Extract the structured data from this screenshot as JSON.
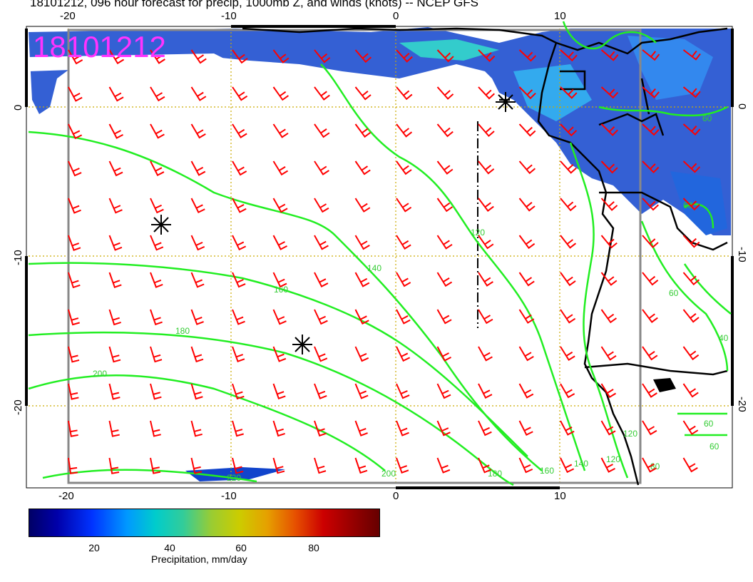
{
  "title": "18101212, 096 hour forecast for precip, 1000mb Z, and winds (knots) -- NCEP GFS",
  "run_stamp": "18101212",
  "axes": {
    "lon_top_labels": [
      "-20",
      "-10",
      "0",
      "10"
    ],
    "lon_bottom_labels": [
      "-20",
      "-10",
      "0",
      "10"
    ],
    "lat_left_labels": [
      "0",
      "-10",
      "-20"
    ],
    "lat_right_labels": [
      "0",
      "-10",
      "-20"
    ]
  },
  "contour_labels": [
    "200",
    "180",
    "160",
    "140",
    "120",
    "220",
    "200",
    "180",
    "160",
    "140",
    "120",
    "80",
    "60",
    "60",
    "60",
    "40",
    "60",
    "60",
    "120"
  ],
  "colorbar": {
    "ticks": [
      "20",
      "40",
      "60",
      "80"
    ],
    "label": "Precipitation, mm/day"
  },
  "colors": {
    "wind_barbs": "#ff0000",
    "contours": "#22ee22",
    "coastline": "#000000",
    "stamp": "#ff33ff",
    "grid": "#ccaa00"
  }
}
